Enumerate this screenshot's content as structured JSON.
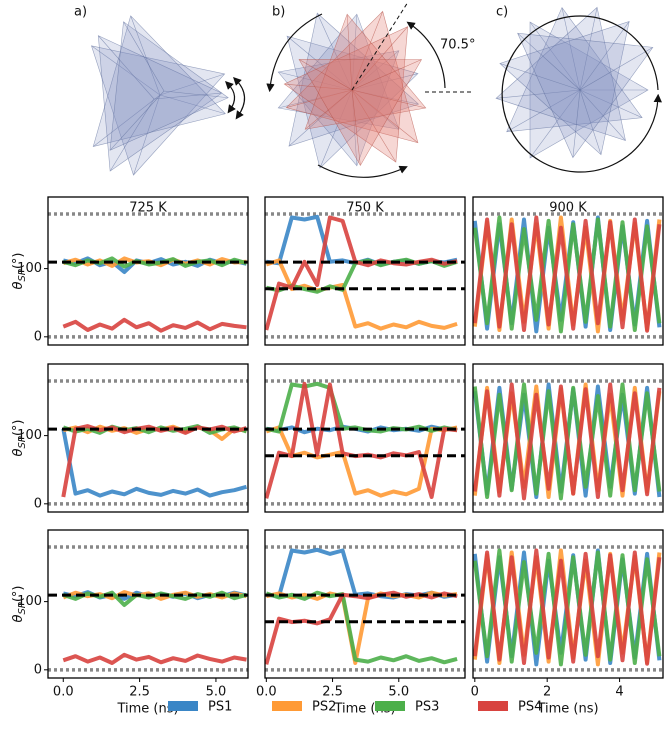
{
  "illustration": {
    "labels": [
      "a)",
      "b)",
      "c)"
    ],
    "angle_label": "70.5°"
  },
  "chart_data": {
    "type": "line",
    "series": [
      {
        "name": "PS1",
        "color": "#3a86c6"
      },
      {
        "name": "PS2",
        "color": "#ff9a35"
      },
      {
        "name": "PS3",
        "color": "#4caf4a"
      },
      {
        "name": "PS4",
        "color": "#d8433f"
      }
    ],
    "panels": [
      {
        "title": "725 K",
        "ylabel": {
          "symbol": "θ",
          "subscript": "SP",
          "unit": "(°)"
        },
        "x": [
          0,
          0.4,
          0.8,
          1.2,
          1.6,
          2,
          2.4,
          2.8,
          3.2,
          3.6,
          4,
          4.4,
          4.8,
          5.2,
          5.6,
          6
        ],
        "values": [
          [
            112,
            108,
            115,
            105,
            110,
            95,
            112,
            108,
            114,
            106,
            110,
            104,
            113,
            108,
            111,
            107
          ],
          [
            108,
            113,
            106,
            112,
            104,
            115,
            109,
            111,
            105,
            113,
            107,
            112,
            106,
            114,
            109,
            110
          ],
          [
            110,
            105,
            112,
            108,
            115,
            103,
            111,
            106,
            109,
            114,
            104,
            110,
            112,
            105,
            113,
            108
          ],
          [
            15,
            22,
            10,
            18,
            12,
            25,
            14,
            20,
            9,
            17,
            13,
            21,
            11,
            19,
            16,
            14
          ]
        ],
        "xlim": [
          -0.5,
          6.05
        ],
        "ylim": [
          -12,
          205
        ],
        "yticks": [
          0,
          100
        ],
        "dashed_lines": [
          109.5
        ],
        "dotted_lines": [
          0,
          180
        ]
      },
      {
        "title": "750 K",
        "x": [
          0,
          0.48,
          0.96,
          1.44,
          1.92,
          2.4,
          2.88,
          3.36,
          3.84,
          4.32,
          4.8,
          5.28,
          5.76,
          6.24,
          6.72,
          7.2
        ],
        "values": [
          [
            110,
            108,
            175,
            172,
            176,
            110,
            112,
            108,
            113,
            106,
            110,
            112,
            107,
            111,
            109,
            113
          ],
          [
            106,
            112,
            70,
            75,
            68,
            72,
            76,
            15,
            20,
            12,
            18,
            14,
            22,
            16,
            13,
            19
          ],
          [
            72,
            68,
            75,
            70,
            66,
            74,
            69,
            108,
            112,
            105,
            110,
            113,
            107,
            111,
            104,
            110
          ],
          [
            10,
            78,
            72,
            110,
            76,
            175,
            170,
            110,
            105,
            112,
            108,
            106,
            110,
            113,
            107,
            111
          ]
        ],
        "xlim": [
          -0.05,
          7.5
        ],
        "ylim": [
          -12,
          205
        ],
        "dashed_lines": [
          109.5,
          70.5
        ],
        "dotted_lines": [
          0,
          180
        ]
      },
      {
        "title": "900 K",
        "x": [
          0,
          0.34,
          0.68,
          1.02,
          1.36,
          1.7,
          2.04,
          2.38,
          2.72,
          3.06,
          3.4,
          3.74,
          4.08,
          4.42,
          4.76,
          5.1
        ],
        "values": [
          [
            170,
            12,
            165,
            20,
            172,
            8,
            160,
            25,
            168,
            15,
            175,
            10,
            162,
            18,
            170,
            14
          ],
          [
            15,
            168,
            10,
            172,
            22,
            165,
            12,
            175,
            18,
            160,
            8,
            170,
            25,
            166,
            11,
            172
          ],
          [
            160,
            20,
            175,
            12,
            158,
            25,
            170,
            8,
            165,
            22,
            172,
            15,
            168,
            10,
            162,
            20
          ],
          [
            20,
            172,
            15,
            165,
            10,
            175,
            18,
            160,
            12,
            170,
            20,
            168,
            14,
            172,
            9,
            165
          ]
        ],
        "xlim": [
          -0.05,
          5.2
        ],
        "ylim": [
          -12,
          205
        ],
        "dotted_lines": [
          0,
          180
        ]
      },
      {
        "ylabel": {
          "symbol": "θ",
          "subscript": "SP",
          "unit": "(°)"
        },
        "x": [
          0,
          0.4,
          0.8,
          1.2,
          1.6,
          2,
          2.4,
          2.8,
          3.2,
          3.6,
          4,
          4.4,
          4.8,
          5.2,
          5.6,
          6
        ],
        "values": [
          [
            110,
            15,
            20,
            12,
            18,
            14,
            22,
            16,
            13,
            19,
            15,
            21,
            12,
            17,
            20,
            25
          ],
          [
            108,
            112,
            105,
            113,
            107,
            111,
            104,
            110,
            109,
            113,
            106,
            112,
            108,
            95,
            110,
            107
          ],
          [
            112,
            106,
            110,
            104,
            113,
            108,
            111,
            105,
            112,
            107,
            110,
            114,
            104,
            109,
            112,
            106
          ],
          [
            10,
            110,
            114,
            108,
            112,
            105,
            110,
            113,
            107,
            111,
            104,
            112,
            109,
            113,
            106,
            111
          ]
        ],
        "xlim": [
          -0.5,
          6.05
        ],
        "ylim": [
          -12,
          205
        ],
        "yticks": [
          0,
          100
        ],
        "dashed_lines": [
          109.5
        ],
        "dotted_lines": [
          0,
          180
        ]
      },
      {
        "x": [
          0,
          0.48,
          0.96,
          1.44,
          1.92,
          2.4,
          2.88,
          3.36,
          3.84,
          4.32,
          4.8,
          5.28,
          5.76,
          6.24,
          6.72,
          7.2
        ],
        "values": [
          [
            110,
            108,
            112,
            105,
            110,
            108,
            113,
            110,
            106,
            112,
            108,
            110,
            107,
            113,
            109,
            111
          ],
          [
            106,
            112,
            70,
            75,
            68,
            72,
            76,
            15,
            20,
            12,
            18,
            14,
            22,
            110,
            108,
            112
          ],
          [
            110,
            106,
            175,
            172,
            176,
            170,
            110,
            112,
            108,
            106,
            111,
            109,
            113,
            107,
            112,
            108
          ],
          [
            8,
            75,
            70,
            176,
            72,
            175,
            74,
            70,
            72,
            68,
            74,
            71,
            76,
            10,
            110,
            108
          ]
        ],
        "xlim": [
          -0.05,
          7.5
        ],
        "ylim": [
          -12,
          205
        ],
        "dashed_lines": [
          109.5,
          70.5
        ],
        "dotted_lines": [
          0,
          180
        ]
      },
      {
        "x": [
          0,
          0.34,
          0.68,
          1.02,
          1.36,
          1.7,
          2.04,
          2.38,
          2.72,
          3.06,
          3.4,
          3.74,
          4.08,
          4.42,
          4.76,
          5.1
        ],
        "values": [
          [
            165,
            15,
            170,
            22,
            160,
            10,
            175,
            18,
            168,
            12,
            172,
            25,
            160,
            15,
            170,
            10
          ],
          [
            12,
            170,
            18,
            162,
            25,
            172,
            10,
            168,
            15,
            175,
            20,
            160,
            12,
            170,
            18,
            165
          ],
          [
            172,
            10,
            160,
            20,
            175,
            15,
            165,
            8,
            170,
            25,
            158,
            12,
            175,
            20,
            162,
            18
          ],
          [
            18,
            165,
            12,
            175,
            8,
            160,
            22,
            172,
            15,
            168,
            10,
            175,
            20,
            162,
            14,
            170
          ]
        ],
        "xlim": [
          -0.05,
          5.2
        ],
        "ylim": [
          -12,
          205
        ],
        "dotted_lines": [
          0,
          180
        ]
      },
      {
        "ylabel": {
          "symbol": "θ",
          "subscript": "SP",
          "unit": "(°)"
        },
        "xlabel": "Time (ns)",
        "x": [
          0,
          0.4,
          0.8,
          1.2,
          1.6,
          2,
          2.4,
          2.8,
          3.2,
          3.6,
          4,
          4.4,
          4.8,
          5.2,
          5.6,
          6
        ],
        "values": [
          [
            112,
            108,
            114,
            106,
            110,
            104,
            113,
            108,
            111,
            107,
            112,
            105,
            110,
            108,
            113,
            109
          ],
          [
            106,
            113,
            108,
            111,
            105,
            114,
            109,
            112,
            104,
            110,
            113,
            107,
            111,
            106,
            112,
            108
          ],
          [
            110,
            104,
            112,
            107,
            113,
            95,
            110,
            106,
            112,
            108,
            104,
            111,
            107,
            113,
            105,
            110
          ],
          [
            14,
            20,
            12,
            18,
            10,
            22,
            15,
            19,
            11,
            17,
            13,
            21,
            16,
            12,
            18,
            15
          ]
        ],
        "xlim": [
          -0.5,
          6.05
        ],
        "xticks": [
          {
            "value": 0,
            "label": "0.0"
          },
          {
            "value": 2.5,
            "label": "2.5"
          },
          {
            "value": 5,
            "label": "5.0"
          }
        ],
        "ylim": [
          -12,
          205
        ],
        "yticks": [
          0,
          100
        ],
        "dashed_lines": [
          109.5
        ],
        "dotted_lines": [
          0,
          180
        ]
      },
      {
        "xlabel": "Time (ns)",
        "x": [
          0,
          0.48,
          0.96,
          1.44,
          1.92,
          2.4,
          2.88,
          3.36,
          3.84,
          4.32,
          4.8,
          5.28,
          5.76,
          6.24,
          6.72,
          7.2
        ],
        "values": [
          [
            110,
            108,
            175,
            172,
            176,
            170,
            175,
            110,
            112,
            108,
            106,
            111,
            109,
            113,
            107,
            110
          ],
          [
            108,
            112,
            106,
            110,
            104,
            112,
            108,
            10,
            105,
            112,
            108,
            110,
            106,
            113,
            109,
            111
          ],
          [
            112,
            106,
            110,
            104,
            113,
            108,
            111,
            15,
            12,
            18,
            14,
            20,
            13,
            17,
            11,
            16
          ],
          [
            8,
            75,
            70,
            72,
            68,
            74,
            110,
            108,
            105,
            110,
            113,
            107,
            111,
            106,
            112,
            108
          ]
        ],
        "xlim": [
          -0.05,
          7.5
        ],
        "xticks": [
          {
            "value": 0,
            "label": "0.0"
          },
          {
            "value": 2.5,
            "label": "2.5"
          },
          {
            "value": 5,
            "label": "5.0"
          }
        ],
        "ylim": [
          -12,
          205
        ],
        "dashed_lines": [
          109.5,
          70.5
        ],
        "dotted_lines": [
          0,
          180
        ]
      },
      {
        "xlabel": "Time (ns)",
        "x": [
          0,
          0.34,
          0.68,
          1.02,
          1.36,
          1.7,
          2.04,
          2.38,
          2.72,
          3.06,
          3.4,
          3.74,
          4.08,
          4.42,
          4.76,
          5.1
        ],
        "values": [
          [
            170,
            12,
            165,
            20,
            172,
            8,
            160,
            25,
            168,
            15,
            175,
            10,
            162,
            18,
            170,
            14
          ],
          [
            15,
            168,
            10,
            172,
            22,
            165,
            12,
            175,
            18,
            160,
            8,
            170,
            25,
            166,
            11,
            172
          ],
          [
            160,
            20,
            175,
            12,
            158,
            25,
            170,
            8,
            165,
            22,
            172,
            15,
            168,
            10,
            162,
            20
          ],
          [
            20,
            172,
            15,
            165,
            10,
            175,
            18,
            160,
            12,
            170,
            20,
            168,
            14,
            172,
            9,
            165
          ]
        ],
        "xlim": [
          -0.05,
          5.2
        ],
        "xticks": [
          0,
          2,
          4
        ],
        "ylim": [
          -12,
          205
        ],
        "dotted_lines": [
          0,
          180
        ]
      }
    ]
  }
}
